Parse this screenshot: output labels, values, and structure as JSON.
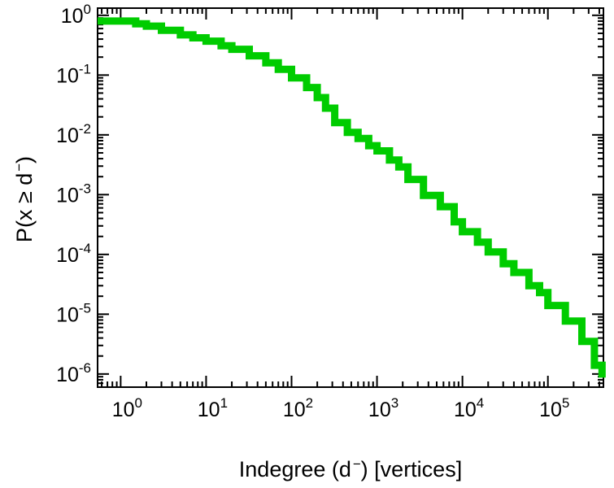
{
  "figure": {
    "background_color": "#ffffff",
    "frame_color": "#000000",
    "tick_color": "#000000",
    "label_color": "#000000",
    "curve_color": "#00cc00"
  },
  "x_axis_title": {
    "pre": "Indegree (d",
    "sup": "−",
    "post": ") [vertices]"
  },
  "y_axis_title": {
    "pre": "P(x ≥ d",
    "sup": "−",
    "post": ")"
  },
  "chart_data": {
    "type": "line",
    "scale": "log-log",
    "title": "",
    "xlabel": "Indegree (d−) [vertices]",
    "ylabel": "P(x ≥ d−)",
    "grid": false,
    "legend": "none",
    "x_tick_exponents": [
      0,
      1,
      2,
      3,
      4,
      5
    ],
    "y_tick_exponents": [
      0,
      -1,
      -2,
      -3,
      -4,
      -5,
      -6
    ],
    "x_log_range": [
      -0.27,
      5.65
    ],
    "y_log_range": [
      -6.22,
      0.12
    ],
    "xlim": [
      0.54,
      450000
    ],
    "ylim": [
      6e-07,
      1.3
    ],
    "series": [
      {
        "name": "indegree-ccdf",
        "color": "#00cc00",
        "line_width": 9,
        "style": "step",
        "x": [
          1,
          1.5,
          2,
          3,
          5,
          7,
          10,
          15,
          20,
          32,
          50,
          70,
          100,
          150,
          200,
          250,
          320,
          450,
          600,
          800,
          1000,
          1400,
          1800,
          2300,
          3500,
          5500,
          8000,
          10000,
          15000,
          20000,
          30000,
          40000,
          60000,
          80000,
          100000,
          160000,
          250000,
          350000,
          430000
        ],
        "y": [
          0.8,
          0.72,
          0.66,
          0.56,
          0.47,
          0.42,
          0.37,
          0.31,
          0.27,
          0.21,
          0.16,
          0.125,
          0.09,
          0.062,
          0.042,
          0.028,
          0.016,
          0.011,
          0.0087,
          0.0066,
          0.0054,
          0.0038,
          0.0029,
          0.0018,
          0.00097,
          0.00063,
          0.00035,
          0.00024,
          0.00016,
          0.00011,
          7e-05,
          5e-05,
          3e-05,
          2.3e-05,
          1.4e-05,
          7.7e-06,
          3.5e-06,
          1.4e-06,
          8.7e-07
        ]
      }
    ]
  }
}
